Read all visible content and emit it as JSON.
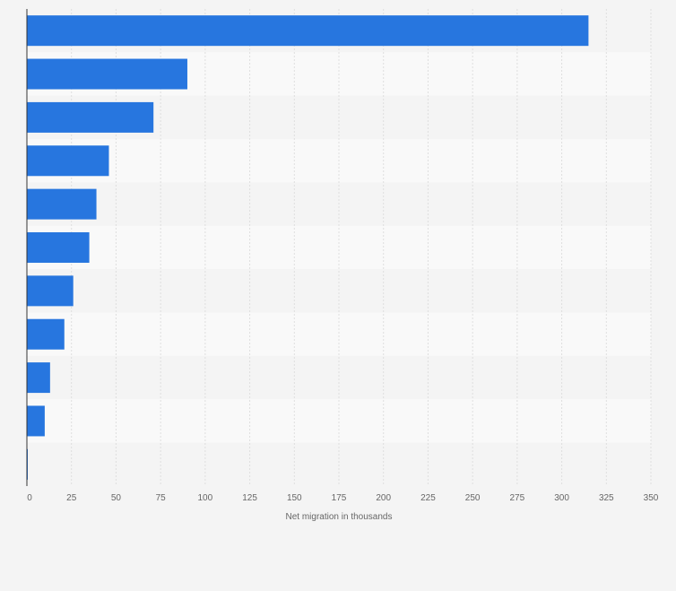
{
  "chart_data": {
    "type": "bar",
    "orientation": "horizontal",
    "categories": [
      "",
      "",
      "",
      "",
      "",
      "",
      "",
      "",
      "",
      "",
      ""
    ],
    "values": [
      315,
      90,
      71,
      46,
      39,
      35,
      26,
      21,
      13,
      10,
      0.5
    ],
    "title": "",
    "xlabel": "Net migration in thousands",
    "ylabel": "",
    "xlim": [
      0,
      350
    ],
    "xticks": [
      0,
      25,
      50,
      75,
      100,
      125,
      150,
      175,
      200,
      225,
      250,
      275,
      300,
      325,
      350
    ],
    "grid": true,
    "legend": "none",
    "bar_color": "#2776df",
    "band_colors": [
      "#f4f4f4",
      "#f9f9f9"
    ],
    "grid_color": "#dedede",
    "axis_color": "#333333"
  }
}
